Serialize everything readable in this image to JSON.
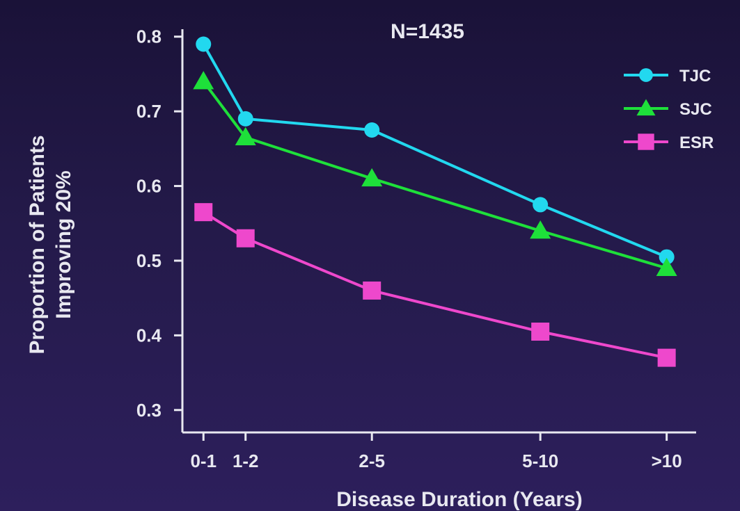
{
  "chart_data": {
    "type": "line",
    "title": "N=1435",
    "xlabel": "Disease Duration (Years)",
    "ylabel_lines": [
      "Proportion of Patients",
      "Improving 20%"
    ],
    "categories": [
      "0-1",
      "1-2",
      "2-5",
      "5-10",
      ">10"
    ],
    "x_positions": [
      0.5,
      1.5,
      4.5,
      8.5,
      11.5
    ],
    "yticks": [
      "0.8",
      "0.7",
      "0.6",
      "0.5",
      "0.4",
      "0.3"
    ],
    "ylim": [
      0.27,
      0.81
    ],
    "legend_position": "top-right",
    "series": [
      {
        "name": "TJC",
        "marker": "circle",
        "color": "#22d8ef",
        "values": [
          0.79,
          0.69,
          0.675,
          0.575,
          0.505
        ]
      },
      {
        "name": "SJC",
        "marker": "triangle",
        "color": "#1ee03a",
        "values": [
          0.74,
          0.665,
          0.61,
          0.54,
          0.49
        ]
      },
      {
        "name": "ESR",
        "marker": "square",
        "color": "#ee48cc",
        "values": [
          0.565,
          0.53,
          0.46,
          0.405,
          0.37
        ]
      }
    ]
  }
}
